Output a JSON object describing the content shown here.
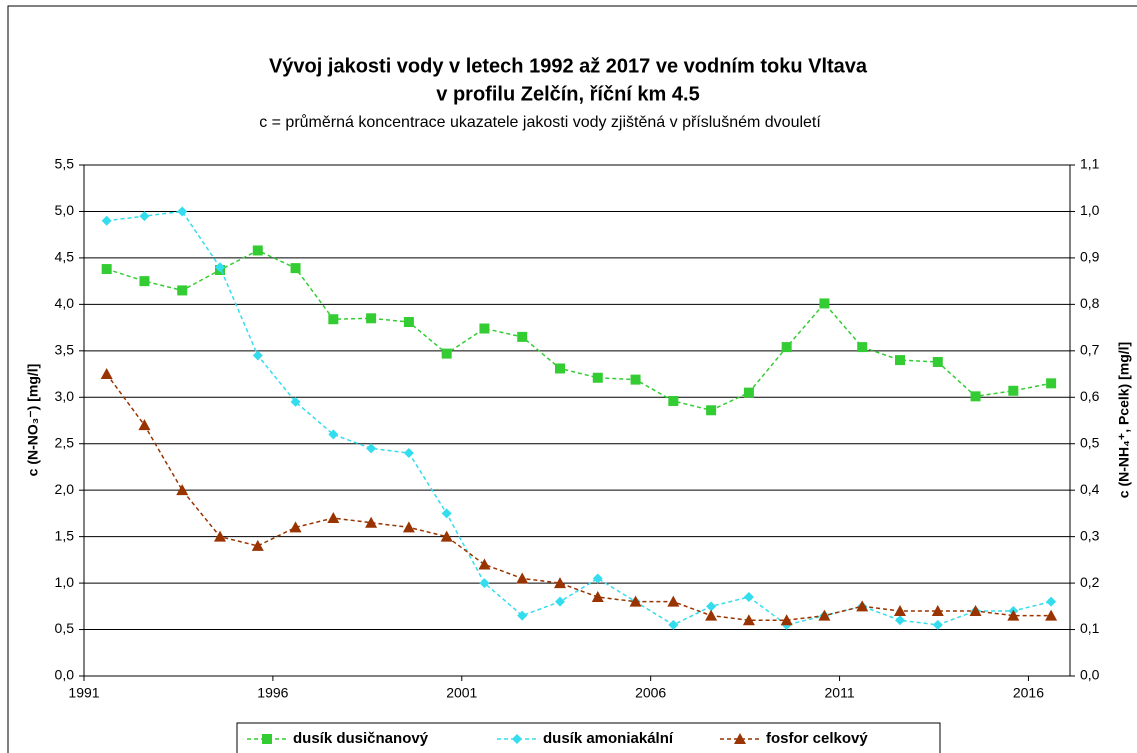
{
  "chart_data": {
    "type": "line",
    "title": "Vývoj jakosti vody v letech 1992 až 2017 ve vodním toku Vltava",
    "title2": "v profilu Zelčín, říční km 4.5",
    "subtitle": "c = průměrná koncentrace ukazatele jakosti vody zjištěná v příslušném dvouletí",
    "ylabel": "c (N-NO₃⁻)  [mg/l]",
    "y2label": "c (N-NH₄⁺,  Pcelk) [mg/l]",
    "x": [
      1991.6,
      1992.6,
      1993.6,
      1994.6,
      1995.6,
      1996.6,
      1997.6,
      1998.6,
      1999.6,
      2000.6,
      2001.6,
      2002.6,
      2003.6,
      2004.6,
      2005.6,
      2006.6,
      2007.6,
      2008.6,
      2009.6,
      2010.6,
      2011.6,
      2012.6,
      2013.6,
      2014.6,
      2015.6,
      2016.6
    ],
    "xlim": [
      1991,
      2017.1
    ],
    "xticks": [
      1991,
      1996,
      2001,
      2006,
      2011,
      2016
    ],
    "ylim": [
      0,
      5.5
    ],
    "yticks": [
      {
        "value": 0,
        "label": "0,0"
      },
      {
        "value": 0.5,
        "label": "0,5"
      },
      {
        "value": 1,
        "label": "1,0"
      },
      {
        "value": 1.5,
        "label": "1,5"
      },
      {
        "value": 2,
        "label": "2,0"
      },
      {
        "value": 2.5,
        "label": "2,5"
      },
      {
        "value": 3,
        "label": "3,0"
      },
      {
        "value": 3.5,
        "label": "3,5"
      },
      {
        "value": 4,
        "label": "4,0"
      },
      {
        "value": 4.5,
        "label": "4,5"
      },
      {
        "value": 5,
        "label": "5,0"
      },
      {
        "value": 5.5,
        "label": "5,5"
      }
    ],
    "y2lim": [
      0,
      1.1
    ],
    "y2ticks": [
      {
        "value": 0,
        "label": "0,0"
      },
      {
        "value": 0.1,
        "label": "0,1"
      },
      {
        "value": 0.2,
        "label": "0,2"
      },
      {
        "value": 0.3,
        "label": "0,3"
      },
      {
        "value": 0.4,
        "label": "0,4"
      },
      {
        "value": 0.5,
        "label": "0,5"
      },
      {
        "value": 0.6,
        "label": "0,6"
      },
      {
        "value": 0.7,
        "label": "0,7"
      },
      {
        "value": 0.8,
        "label": "0,8"
      },
      {
        "value": 0.9,
        "label": "0,9"
      },
      {
        "value": 1,
        "label": "1,0"
      },
      {
        "value": 1.1,
        "label": "1,1"
      }
    ],
    "grid": true,
    "legend": "bottom",
    "series": [
      {
        "name": "dusík dusičnanový",
        "color": "#33cc33",
        "marker": "square",
        "values": [
          4.38,
          4.25,
          4.15,
          4.37,
          4.58,
          4.39,
          3.84,
          3.85,
          3.81,
          3.47,
          3.74,
          3.65,
          3.31,
          3.21,
          3.19,
          2.96,
          2.86,
          3.05,
          3.54,
          4.01,
          3.54,
          3.4,
          3.38,
          3.01,
          3.07,
          3.15
        ]
      },
      {
        "name": "dusík amoniakální",
        "color": "#33ddee",
        "marker": "diamond",
        "axis": "y2",
        "values": [
          0.98,
          0.99,
          1.0,
          0.88,
          0.69,
          0.59,
          0.52,
          0.49,
          0.48,
          0.35,
          0.2,
          0.13,
          0.16,
          0.21,
          0.16,
          0.11,
          0.15,
          0.17,
          0.11,
          0.13,
          0.15,
          0.12,
          0.11,
          0.14,
          0.14,
          0.16
        ]
      },
      {
        "name": "fosfor celkový",
        "color": "#993300",
        "marker": "triangle",
        "axis": "y2",
        "values": [
          0.65,
          0.54,
          0.4,
          0.3,
          0.28,
          0.32,
          0.34,
          0.33,
          0.32,
          0.3,
          0.24,
          0.21,
          0.2,
          0.17,
          0.16,
          0.16,
          0.13,
          0.12,
          0.12,
          0.13,
          0.15,
          0.14,
          0.14,
          0.14,
          0.13,
          0.13
        ]
      }
    ]
  }
}
